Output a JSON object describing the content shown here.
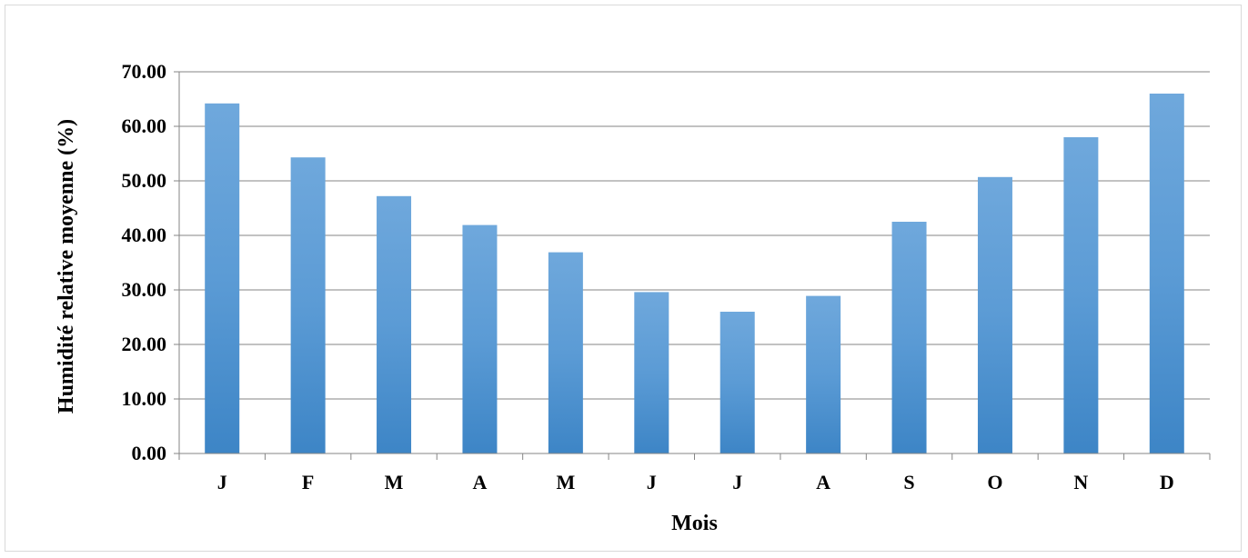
{
  "chart_data": {
    "type": "bar",
    "categories": [
      "J",
      "F",
      "M",
      "A",
      "M",
      "J",
      "J",
      "A",
      "S",
      "O",
      "N",
      "D"
    ],
    "values": [
      64.2,
      54.3,
      47.2,
      41.9,
      36.9,
      29.6,
      26.0,
      28.9,
      42.5,
      50.7,
      58.0,
      66.0
    ],
    "xlabel": "Mois",
    "ylabel": "Humidité relative moyenne (%)",
    "ylim": [
      0,
      70
    ],
    "y_ticks": [
      "0.00",
      "10.00",
      "20.00",
      "30.00",
      "40.00",
      "50.00",
      "60.00",
      "70.00"
    ],
    "grid": true,
    "legend": "none",
    "colors": {
      "bar_top": "#6fa8dc",
      "bar_mid": "#5b9bd5",
      "bar_bottom": "#3d85c6",
      "grid": "#868686",
      "axis": "#868686"
    }
  }
}
